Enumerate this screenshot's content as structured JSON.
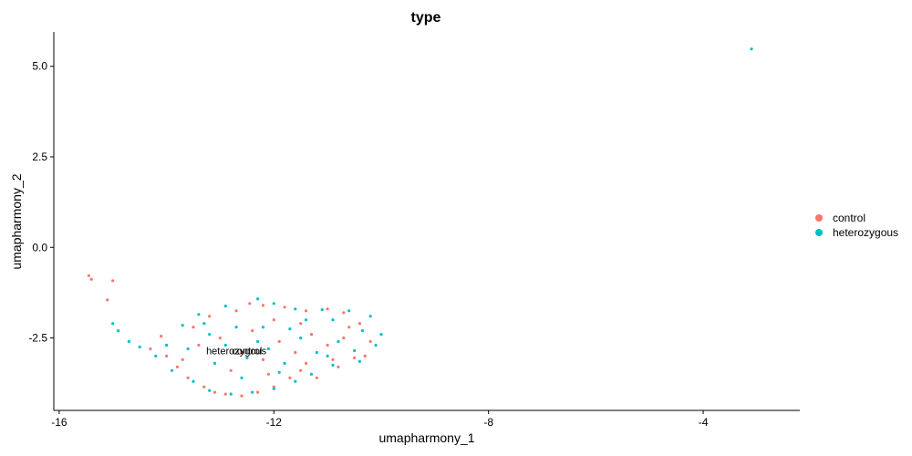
{
  "chart_data": {
    "type": "scatter",
    "title": "type",
    "xlabel": "umapharmony_1",
    "ylabel": "umapharmony_2",
    "xlim": [
      -16.1,
      -2.2
    ],
    "ylim": [
      -4.5,
      5.95
    ],
    "x_ticks": [
      -16,
      -12,
      -8,
      -4
    ],
    "x_tick_labels": [
      "-16",
      "-12",
      "-8",
      "-4"
    ],
    "y_ticks": [
      5.0,
      2.5,
      0.0,
      -2.5
    ],
    "y_tick_labels": [
      "5.0",
      "2.5",
      "0.0",
      "-2.5"
    ],
    "grid": false,
    "legend_position": "right",
    "legend": [
      {
        "name": "control",
        "color": "#F8766D"
      },
      {
        "name": "heterozygous",
        "color": "#00BFC4"
      }
    ],
    "cluster_labels": [
      {
        "text": "heterozygous",
        "x": -12.7,
        "y": -2.85
      },
      {
        "text": "control",
        "x": -12.5,
        "y": -2.85
      }
    ],
    "series": [
      {
        "name": "control",
        "color": "#F8766D",
        "points": [
          [
            -15.45,
            -0.78
          ],
          [
            -15.4,
            -0.88
          ],
          [
            -15.0,
            -0.92
          ],
          [
            -15.1,
            -1.45
          ],
          [
            -12.45,
            -1.55
          ],
          [
            -14.1,
            -2.45
          ],
          [
            -14.3,
            -2.8
          ],
          [
            -14.0,
            -3.0
          ],
          [
            -13.8,
            -3.3
          ],
          [
            -13.6,
            -3.6
          ],
          [
            -13.3,
            -3.85
          ],
          [
            -13.1,
            -4.0
          ],
          [
            -12.9,
            -4.05
          ],
          [
            -12.6,
            -4.1
          ],
          [
            -12.3,
            -4.0
          ],
          [
            -12.0,
            -3.85
          ],
          [
            -11.7,
            -3.6
          ],
          [
            -11.5,
            -3.4
          ],
          [
            -11.2,
            -3.6
          ],
          [
            -10.8,
            -3.3
          ],
          [
            -10.5,
            -3.05
          ],
          [
            -10.2,
            -2.6
          ],
          [
            -10.4,
            -2.1
          ],
          [
            -10.7,
            -1.8
          ],
          [
            -11.0,
            -1.7
          ],
          [
            -11.4,
            -1.75
          ],
          [
            -11.8,
            -1.65
          ],
          [
            -12.2,
            -1.6
          ],
          [
            -12.7,
            -1.75
          ],
          [
            -13.2,
            -1.9
          ],
          [
            -13.5,
            -2.2
          ],
          [
            -13.0,
            -2.5
          ],
          [
            -12.6,
            -2.9
          ],
          [
            -12.2,
            -3.1
          ],
          [
            -11.9,
            -2.6
          ],
          [
            -11.6,
            -2.9
          ],
          [
            -11.3,
            -2.4
          ],
          [
            -11.0,
            -2.7
          ],
          [
            -10.7,
            -2.5
          ],
          [
            -10.9,
            -3.1
          ],
          [
            -12.4,
            -2.3
          ],
          [
            -12.0,
            -2.0
          ],
          [
            -11.5,
            -2.1
          ],
          [
            -13.4,
            -2.7
          ],
          [
            -12.8,
            -3.4
          ],
          [
            -12.1,
            -3.5
          ],
          [
            -11.4,
            -3.2
          ],
          [
            -10.6,
            -2.2
          ],
          [
            -10.3,
            -3.0
          ],
          [
            -13.7,
            -3.1
          ]
        ]
      },
      {
        "name": "heterozygous",
        "color": "#00BFC4",
        "points": [
          [
            -3.1,
            5.48
          ],
          [
            -15.0,
            -2.1
          ],
          [
            -14.9,
            -2.3
          ],
          [
            -14.7,
            -2.6
          ],
          [
            -14.5,
            -2.75
          ],
          [
            -14.2,
            -3.0
          ],
          [
            -13.9,
            -3.4
          ],
          [
            -13.5,
            -3.7
          ],
          [
            -13.2,
            -3.95
          ],
          [
            -12.8,
            -4.05
          ],
          [
            -12.4,
            -4.0
          ],
          [
            -12.0,
            -3.9
          ],
          [
            -11.6,
            -3.7
          ],
          [
            -11.3,
            -3.5
          ],
          [
            -10.9,
            -3.25
          ],
          [
            -10.4,
            -3.15
          ],
          [
            -10.1,
            -2.7
          ],
          [
            -10.0,
            -2.4
          ],
          [
            -10.2,
            -1.9
          ],
          [
            -10.6,
            -1.75
          ],
          [
            -11.1,
            -1.72
          ],
          [
            -11.6,
            -1.7
          ],
          [
            -12.0,
            -1.55
          ],
          [
            -12.3,
            -1.42
          ],
          [
            -12.9,
            -1.62
          ],
          [
            -13.4,
            -1.85
          ],
          [
            -13.7,
            -2.15
          ],
          [
            -13.2,
            -2.4
          ],
          [
            -12.9,
            -2.7
          ],
          [
            -12.5,
            -3.05
          ],
          [
            -12.1,
            -2.8
          ],
          [
            -11.8,
            -3.2
          ],
          [
            -11.5,
            -2.5
          ],
          [
            -11.2,
            -2.9
          ],
          [
            -10.8,
            -2.6
          ],
          [
            -10.5,
            -2.85
          ],
          [
            -12.2,
            -2.2
          ],
          [
            -11.7,
            -2.25
          ],
          [
            -13.1,
            -3.2
          ],
          [
            -12.6,
            -3.6
          ],
          [
            -11.9,
            -3.45
          ],
          [
            -11.0,
            -3.0
          ],
          [
            -10.35,
            -2.3
          ],
          [
            -13.6,
            -2.8
          ],
          [
            -14.0,
            -2.7
          ],
          [
            -12.3,
            -2.6
          ],
          [
            -11.4,
            -2.0
          ],
          [
            -10.9,
            -2.0
          ],
          [
            -13.3,
            -2.1
          ],
          [
            -12.7,
            -2.2
          ]
        ]
      }
    ]
  }
}
